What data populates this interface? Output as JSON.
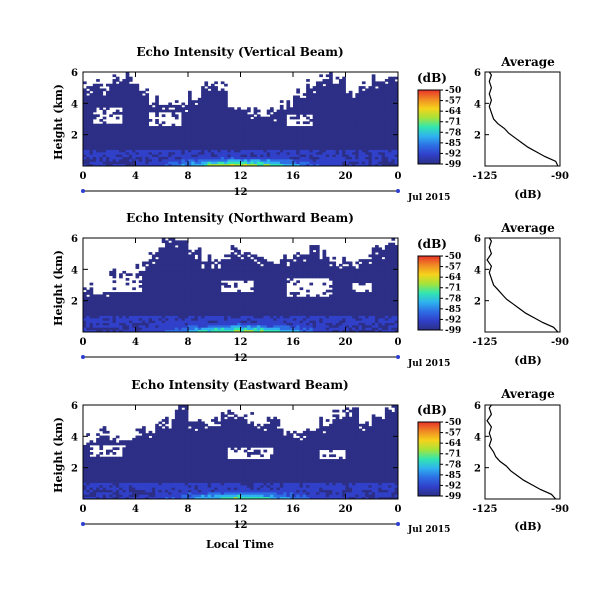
{
  "figure": {
    "panels_xlabel": "Local Time",
    "date_label": "Jul 2015",
    "day_label": "12"
  },
  "colorbar": {
    "title": "(dB)",
    "ticks": [
      "-50",
      "-57",
      "-64",
      "-71",
      "-78",
      "-85",
      "-92",
      "-99"
    ],
    "colors": [
      "#e8322a",
      "#f08a24",
      "#f5d31c",
      "#a6e33a",
      "#32e6b0",
      "#2fb2ef",
      "#2d6ee5",
      "#3040c8",
      "#2c2f85"
    ]
  },
  "chart_data": [
    {
      "type": "heatmap",
      "title": "Echo Intensity (Vertical Beam)",
      "ylabel": "Height (km)",
      "xlabel": "",
      "xlim": [
        0,
        24
      ],
      "ylim": [
        0,
        6
      ],
      "x_ticks": [
        "0",
        "4",
        "8",
        "12",
        "16",
        "20",
        "0"
      ],
      "y_ticks": [
        "2",
        "4",
        "6"
      ],
      "clim": [
        -99,
        -50
      ],
      "fill_top_km": [
        5.1,
        5.3,
        5.6,
        5.8,
        5.2,
        4.4,
        3.9,
        4.1,
        4.6,
        5.2,
        5.5,
        3.9,
        3.5,
        3.4,
        3.6,
        4.0,
        4.8,
        5.4,
        5.8,
        5.6,
        4.9,
        5.2,
        5.7,
        6.0
      ],
      "clear_gaps": [
        {
          "x": [
            0.8,
            3.0
          ],
          "y": [
            2.7,
            3.7
          ]
        },
        {
          "x": [
            5.0,
            7.5
          ],
          "y": [
            2.5,
            3.4
          ]
        },
        {
          "x": [
            15.5,
            17.5
          ],
          "y": [
            2.6,
            3.3
          ]
        }
      ],
      "near_surface_peak_db": -62
    },
    {
      "type": "heatmap",
      "title": "Echo Intensity (Northward Beam)",
      "ylabel": "Height (km)",
      "xlabel": "",
      "xlim": [
        0,
        24
      ],
      "ylim": [
        0,
        6
      ],
      "x_ticks": [
        "0",
        "4",
        "8",
        "12",
        "16",
        "20",
        "0"
      ],
      "y_ticks": [
        "2",
        "4",
        "6"
      ],
      "clim": [
        -99,
        -50
      ],
      "fill_top_km": [
        3.0,
        2.8,
        3.9,
        4.0,
        4.5,
        5.1,
        5.9,
        6.0,
        5.3,
        4.7,
        4.9,
        5.3,
        5.2,
        4.7,
        4.5,
        4.8,
        5.2,
        5.4,
        5.0,
        4.6,
        4.5,
        4.8,
        5.4,
        6.0
      ],
      "clear_gaps": [
        {
          "x": [
            0.8,
            4.5
          ],
          "y": [
            2.6,
            3.6
          ]
        },
        {
          "x": [
            10.5,
            13.0
          ],
          "y": [
            2.5,
            3.3
          ]
        },
        {
          "x": [
            15.5,
            19.0
          ],
          "y": [
            2.3,
            3.4
          ]
        },
        {
          "x": [
            20.5,
            22.0
          ],
          "y": [
            2.5,
            3.2
          ]
        }
      ],
      "near_surface_peak_db": -66
    },
    {
      "type": "heatmap",
      "title": "Echo Intensity (Eastward Beam)",
      "ylabel": "Height (km)",
      "xlabel": "Local Time",
      "xlim": [
        0,
        24
      ],
      "ylim": [
        0,
        6
      ],
      "x_ticks": [
        "0",
        "4",
        "8",
        "12",
        "16",
        "20",
        "0"
      ],
      "y_ticks": [
        "2",
        "4",
        "6"
      ],
      "clim": [
        -99,
        -50
      ],
      "fill_top_km": [
        3.9,
        4.4,
        4.1,
        3.8,
        4.6,
        4.7,
        4.9,
        6.0,
        5.2,
        5.0,
        5.4,
        5.6,
        5.2,
        5.0,
        5.1,
        4.3,
        4.1,
        4.6,
        5.0,
        5.5,
        5.8,
        5.1,
        5.3,
        6.0
      ],
      "clear_gaps": [
        {
          "x": [
            0.5,
            3.0
          ],
          "y": [
            2.7,
            3.5
          ]
        },
        {
          "x": [
            11.0,
            14.5
          ],
          "y": [
            2.5,
            3.3
          ]
        },
        {
          "x": [
            18.0,
            20.0
          ],
          "y": [
            2.6,
            3.1
          ]
        }
      ],
      "near_surface_peak_db": -70
    },
    {
      "type": "line",
      "title": "Average",
      "xlabel": "(dB)",
      "ylabel": "",
      "xlim": [
        -125,
        -90
      ],
      "ylim": [
        0,
        6
      ],
      "x_ticks": [
        "-125",
        "-90"
      ],
      "y_ticks": [
        "2",
        "4",
        "6"
      ],
      "series": [
        {
          "points": [
            [
              -91,
              0.0
            ],
            [
              -92,
              0.3
            ],
            [
              -97,
              0.6
            ],
            [
              -101,
              0.9
            ],
            [
              -105,
              1.2
            ],
            [
              -108,
              1.5
            ],
            [
              -111,
              1.8
            ],
            [
              -114,
              2.1
            ],
            [
              -116,
              2.4
            ],
            [
              -119,
              2.7
            ],
            [
              -121,
              3.0
            ],
            [
              -122,
              3.4
            ],
            [
              -123,
              3.8
            ],
            [
              -122,
              4.2
            ],
            [
              -123,
              4.6
            ],
            [
              -122,
              5.0
            ],
            [
              -123,
              5.4
            ],
            [
              -122,
              5.8
            ],
            [
              -123,
              6.0
            ]
          ]
        }
      ]
    },
    {
      "type": "line",
      "title": "Average",
      "xlabel": "(dB)",
      "ylabel": "",
      "xlim": [
        -125,
        -90
      ],
      "ylim": [
        0,
        6
      ],
      "x_ticks": [
        "-125",
        "-90"
      ],
      "y_ticks": [
        "2",
        "4",
        "6"
      ],
      "series": [
        {
          "points": [
            [
              -91,
              0.0
            ],
            [
              -93,
              0.3
            ],
            [
              -98,
              0.6
            ],
            [
              -102,
              0.9
            ],
            [
              -106,
              1.2
            ],
            [
              -109,
              1.5
            ],
            [
              -112,
              1.8
            ],
            [
              -115,
              2.1
            ],
            [
              -117,
              2.4
            ],
            [
              -119,
              2.7
            ],
            [
              -121,
              3.0
            ],
            [
              -122,
              3.4
            ],
            [
              -123,
              3.8
            ],
            [
              -122,
              4.2
            ],
            [
              -124,
              4.6
            ],
            [
              -122,
              5.0
            ],
            [
              -123,
              5.4
            ],
            [
              -122,
              5.8
            ],
            [
              -123,
              6.0
            ]
          ]
        }
      ]
    },
    {
      "type": "line",
      "title": "Average",
      "xlabel": "(dB)",
      "ylabel": "",
      "xlim": [
        -125,
        -90
      ],
      "ylim": [
        0,
        6
      ],
      "x_ticks": [
        "-125",
        "-90"
      ],
      "y_ticks": [
        "2",
        "4",
        "6"
      ],
      "series": [
        {
          "points": [
            [
              -92,
              0.0
            ],
            [
              -94,
              0.3
            ],
            [
              -99,
              0.6
            ],
            [
              -103,
              0.9
            ],
            [
              -107,
              1.2
            ],
            [
              -110,
              1.5
            ],
            [
              -113,
              1.8
            ],
            [
              -115,
              2.1
            ],
            [
              -118,
              2.4
            ],
            [
              -120,
              2.7
            ],
            [
              -121,
              3.0
            ],
            [
              -123,
              3.4
            ],
            [
              -122,
              3.8
            ],
            [
              -123,
              4.2
            ],
            [
              -122,
              4.6
            ],
            [
              -124,
              5.0
            ],
            [
              -122,
              5.4
            ],
            [
              -123,
              5.8
            ],
            [
              -122,
              6.0
            ]
          ]
        }
      ]
    }
  ]
}
